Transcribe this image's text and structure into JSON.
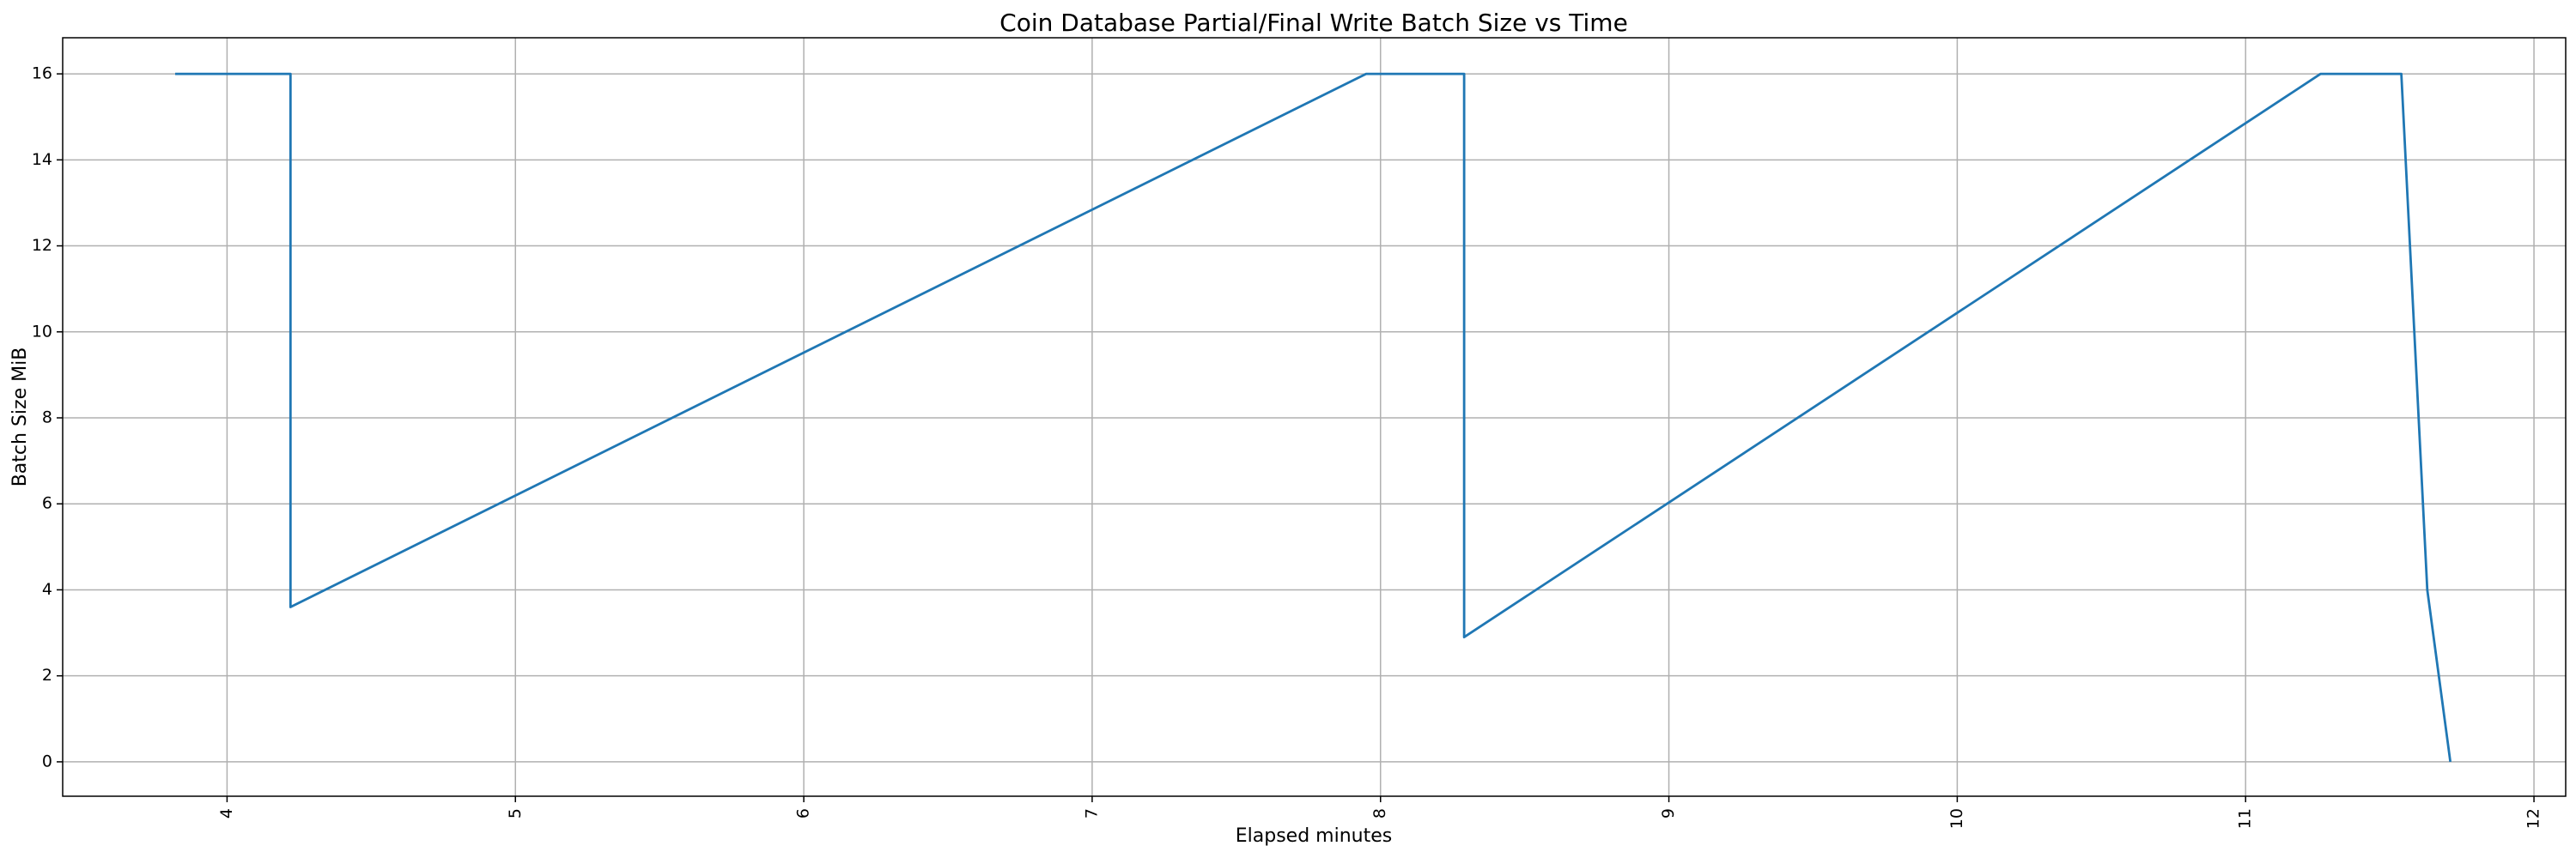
{
  "chart_data": {
    "type": "line",
    "title": "Coin Database Partial/Final Write Batch Size vs Time",
    "x_label": "Elapsed minutes",
    "y_label": "Batch Size MiB",
    "x": [
      3.82,
      4.22,
      4.22,
      7.95,
      8.29,
      8.29,
      11.26,
      11.54,
      11.63,
      11.71
    ],
    "values": [
      16,
      16,
      3.6,
      16,
      16,
      2.9,
      16,
      16,
      4,
      0
    ],
    "color": "#1f77b4",
    "xlim": [
      3.43,
      12.11
    ],
    "xticks": [
      4,
      5,
      6,
      7,
      8,
      9,
      10,
      11,
      12
    ],
    "ylim": [
      -0.8,
      16.84
    ],
    "yticks": [
      0,
      2,
      4,
      6,
      8,
      10,
      12,
      14,
      16
    ],
    "grid": true
  }
}
